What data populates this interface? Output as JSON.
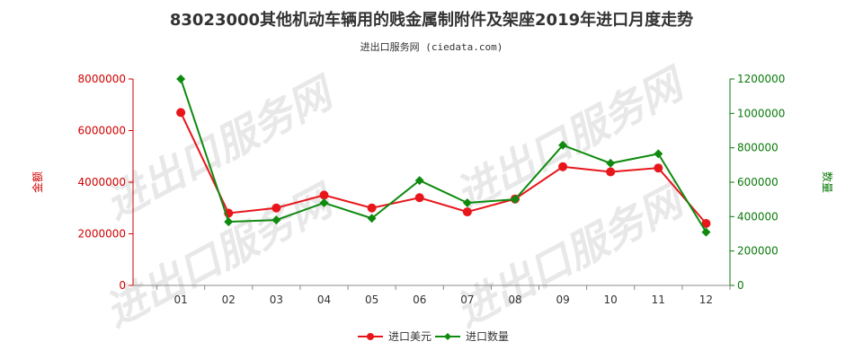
{
  "chart_data": {
    "type": "line",
    "title": "83023000其他机动车辆用的贱金属制附件及架座2019年进口月度走势",
    "subtitle": "进出口服务网 (ciedata.com)",
    "categories": [
      "01",
      "02",
      "03",
      "04",
      "05",
      "06",
      "07",
      "08",
      "09",
      "10",
      "11",
      "12"
    ],
    "y_left": {
      "label": "金额",
      "ylim": [
        0,
        8000000
      ],
      "ticks": [
        0,
        2000000,
        4000000,
        6000000,
        8000000
      ],
      "tick_labels": [
        "0",
        "2000000",
        "4000000",
        "6000000",
        "8000000"
      ]
    },
    "y_right": {
      "label": "数量",
      "ylim": [
        0,
        1200000
      ],
      "ticks": [
        0,
        200000,
        400000,
        600000,
        800000,
        1000000,
        1200000
      ],
      "tick_labels": [
        "0",
        "200000",
        "400000",
        "600000",
        "800000",
        "1000000",
        "1200000"
      ]
    },
    "series": [
      {
        "name": "进口美元",
        "axis": "left",
        "color": "#e8161b",
        "marker": "circle",
        "values": [
          6700000,
          2800000,
          3000000,
          3500000,
          3000000,
          3400000,
          2850000,
          3350000,
          4600000,
          4400000,
          4550000,
          2400000
        ]
      },
      {
        "name": "进口数量",
        "axis": "right",
        "color": "#0f8a0f",
        "marker": "diamond",
        "values": [
          1200000,
          370000,
          380000,
          480000,
          390000,
          610000,
          480000,
          500000,
          815000,
          710000,
          765000,
          310000
        ]
      }
    ],
    "grid": false,
    "legend": "bottom-center",
    "watermark": "进出口服务网"
  }
}
